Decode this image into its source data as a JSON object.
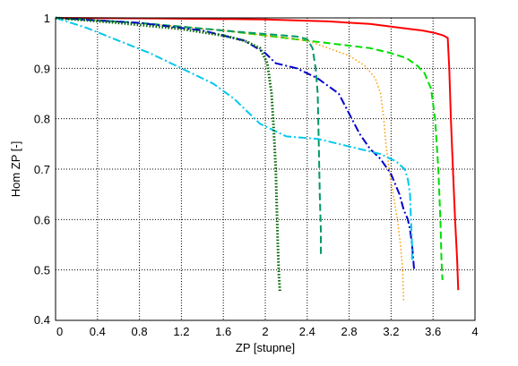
{
  "chart_data": {
    "type": "line",
    "title": "",
    "xlabel": "ZP [stupne]",
    "ylabel": "Hom ZP [-]",
    "xlim": [
      0,
      4
    ],
    "ylim": [
      0.4,
      1.0
    ],
    "xticks": [
      "0",
      "0.4",
      "0.8",
      "1.2",
      "1.6",
      "2",
      "2.4",
      "2.8",
      "3.2",
      "3.6",
      "4"
    ],
    "yticks": [
      "0.4",
      "0.5",
      "0.6",
      "0.7",
      "0.8",
      "0.9",
      "1"
    ],
    "grid": true,
    "legend": "none",
    "series": [
      {
        "color": "#ff0000",
        "style": "solid",
        "points": [
          [
            0,
            1.0
          ],
          [
            1.0,
            0.999
          ],
          [
            2.0,
            0.997
          ],
          [
            2.6,
            0.993
          ],
          [
            3.0,
            0.988
          ],
          [
            3.3,
            0.98
          ],
          [
            3.5,
            0.975
          ],
          [
            3.62,
            0.97
          ],
          [
            3.7,
            0.965
          ],
          [
            3.74,
            0.96
          ],
          [
            3.755,
            0.9
          ],
          [
            3.77,
            0.8
          ],
          [
            3.79,
            0.7
          ],
          [
            3.81,
            0.6
          ],
          [
            3.83,
            0.52
          ],
          [
            3.84,
            0.46
          ]
        ]
      },
      {
        "color": "#00dd00",
        "style": "dashed",
        "points": [
          [
            0,
            1.0
          ],
          [
            0.8,
            0.99
          ],
          [
            1.6,
            0.975
          ],
          [
            2.0,
            0.965
          ],
          [
            2.4,
            0.955
          ],
          [
            2.8,
            0.945
          ],
          [
            3.0,
            0.94
          ],
          [
            3.2,
            0.93
          ],
          [
            3.35,
            0.92
          ],
          [
            3.45,
            0.905
          ],
          [
            3.52,
            0.89
          ],
          [
            3.58,
            0.86
          ],
          [
            3.62,
            0.8
          ],
          [
            3.65,
            0.7
          ],
          [
            3.67,
            0.6
          ],
          [
            3.68,
            0.52
          ],
          [
            3.69,
            0.48
          ]
        ]
      },
      {
        "color": "#ff9900",
        "style": "dotted",
        "points": [
          [
            0,
            1.0
          ],
          [
            0.8,
            0.99
          ],
          [
            1.6,
            0.975
          ],
          [
            2.0,
            0.965
          ],
          [
            2.4,
            0.955
          ],
          [
            2.6,
            0.94
          ],
          [
            2.8,
            0.925
          ],
          [
            2.95,
            0.905
          ],
          [
            3.05,
            0.88
          ],
          [
            3.1,
            0.85
          ],
          [
            3.13,
            0.8
          ],
          [
            3.15,
            0.75
          ],
          [
            3.18,
            0.7
          ],
          [
            3.22,
            0.65
          ],
          [
            3.26,
            0.6
          ],
          [
            3.29,
            0.55
          ],
          [
            3.31,
            0.5
          ],
          [
            3.32,
            0.44
          ]
        ]
      },
      {
        "color": "#009966",
        "style": "dashed",
        "points": [
          [
            0,
            1.0
          ],
          [
            0.8,
            0.99
          ],
          [
            1.6,
            0.975
          ],
          [
            2.0,
            0.968
          ],
          [
            2.3,
            0.963
          ],
          [
            2.4,
            0.958
          ],
          [
            2.45,
            0.94
          ],
          [
            2.48,
            0.9
          ],
          [
            2.5,
            0.85
          ],
          [
            2.51,
            0.75
          ],
          [
            2.52,
            0.65
          ],
          [
            2.53,
            0.58
          ],
          [
            2.53,
            0.53
          ]
        ]
      },
      {
        "color": "#0000cc",
        "style": "dashdot",
        "points": [
          [
            0,
            1.0
          ],
          [
            0.8,
            0.99
          ],
          [
            1.4,
            0.975
          ],
          [
            1.8,
            0.955
          ],
          [
            2.0,
            0.93
          ],
          [
            2.1,
            0.91
          ],
          [
            2.3,
            0.9
          ],
          [
            2.5,
            0.88
          ],
          [
            2.7,
            0.85
          ],
          [
            2.8,
            0.81
          ],
          [
            2.9,
            0.77
          ],
          [
            3.0,
            0.74
          ],
          [
            3.1,
            0.72
          ],
          [
            3.2,
            0.69
          ],
          [
            3.28,
            0.65
          ],
          [
            3.32,
            0.62
          ],
          [
            3.36,
            0.6
          ],
          [
            3.38,
            0.58
          ],
          [
            3.4,
            0.55
          ],
          [
            3.42,
            0.5
          ]
        ]
      },
      {
        "color": "#00c8ee",
        "style": "dashdot",
        "points": [
          [
            0,
            1.0
          ],
          [
            0.3,
            0.98
          ],
          [
            0.6,
            0.955
          ],
          [
            0.9,
            0.93
          ],
          [
            1.2,
            0.9
          ],
          [
            1.5,
            0.87
          ],
          [
            1.7,
            0.84
          ],
          [
            1.8,
            0.82
          ],
          [
            1.95,
            0.79
          ],
          [
            2.1,
            0.775
          ],
          [
            2.2,
            0.765
          ],
          [
            2.5,
            0.76
          ],
          [
            2.7,
            0.75
          ],
          [
            2.9,
            0.74
          ],
          [
            3.1,
            0.73
          ],
          [
            3.25,
            0.715
          ],
          [
            3.33,
            0.7
          ],
          [
            3.36,
            0.68
          ],
          [
            3.38,
            0.65
          ],
          [
            3.39,
            0.6
          ],
          [
            3.4,
            0.55
          ],
          [
            3.4,
            0.52
          ]
        ]
      },
      {
        "color": "#006600",
        "style": "thickdotted",
        "points": [
          [
            0,
            1.0
          ],
          [
            0.6,
            0.99
          ],
          [
            1.2,
            0.978
          ],
          [
            1.6,
            0.965
          ],
          [
            1.8,
            0.955
          ],
          [
            1.95,
            0.94
          ],
          [
            2.02,
            0.91
          ],
          [
            2.06,
            0.85
          ],
          [
            2.08,
            0.78
          ],
          [
            2.1,
            0.7
          ],
          [
            2.11,
            0.62
          ],
          [
            2.12,
            0.55
          ],
          [
            2.13,
            0.49
          ],
          [
            2.14,
            0.455
          ]
        ]
      }
    ]
  }
}
